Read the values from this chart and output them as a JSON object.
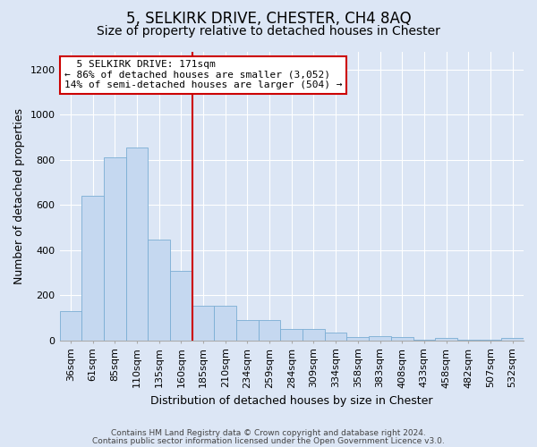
{
  "title": "5, SELKIRK DRIVE, CHESTER, CH4 8AQ",
  "subtitle": "Size of property relative to detached houses in Chester",
  "xlabel": "Distribution of detached houses by size in Chester",
  "ylabel": "Number of detached properties",
  "footer_line1": "Contains HM Land Registry data © Crown copyright and database right 2024.",
  "footer_line2": "Contains public sector information licensed under the Open Government Licence v3.0.",
  "categories": [
    "36sqm",
    "61sqm",
    "85sqm",
    "110sqm",
    "135sqm",
    "160sqm",
    "185sqm",
    "210sqm",
    "234sqm",
    "259sqm",
    "284sqm",
    "309sqm",
    "334sqm",
    "358sqm",
    "383sqm",
    "408sqm",
    "433sqm",
    "458sqm",
    "482sqm",
    "507sqm",
    "532sqm"
  ],
  "values": [
    130,
    640,
    810,
    855,
    445,
    310,
    155,
    155,
    90,
    90,
    50,
    50,
    35,
    15,
    20,
    15,
    5,
    10,
    5,
    5,
    10
  ],
  "bar_color": "#c5d8f0",
  "bar_edge_color": "#7aadd4",
  "marker_index": 6,
  "marker_label": "5 SELKIRK DRIVE: 171sqm",
  "marker_sublabel1": "← 86% of detached houses are smaller (3,052)",
  "marker_sublabel2": "14% of semi-detached houses are larger (504) →",
  "marker_color": "#cc0000",
  "annotation_box_color": "#cc0000",
  "ylim": [
    0,
    1280
  ],
  "yticks": [
    0,
    200,
    400,
    600,
    800,
    1000,
    1200
  ],
  "background_color": "#dce6f5",
  "plot_background": "#dce6f5",
  "grid_color": "#ffffff",
  "title_fontsize": 12,
  "subtitle_fontsize": 10,
  "tick_fontsize": 8,
  "ylabel_fontsize": 9,
  "xlabel_fontsize": 9,
  "footer_fontsize": 6.5
}
